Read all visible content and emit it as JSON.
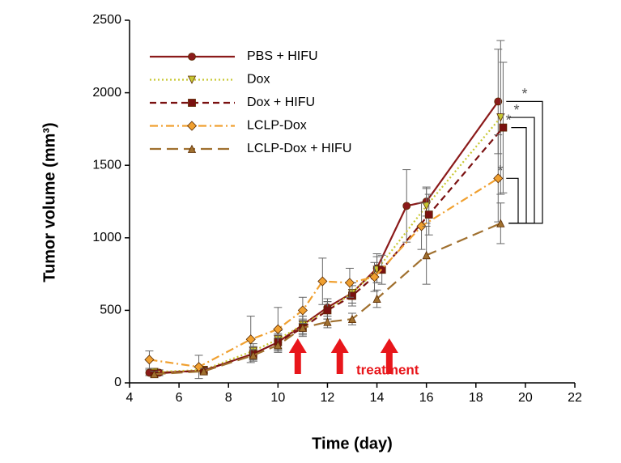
{
  "chart_data": {
    "type": "line",
    "x_label": "Time (day)",
    "y_label": "Tumor volume (mm³)",
    "xlim": [
      4,
      22
    ],
    "xticks": [
      4,
      6,
      8,
      10,
      12,
      14,
      16,
      18,
      20,
      22
    ],
    "ylim": [
      0,
      2500
    ],
    "yticks": [
      0,
      500,
      1000,
      1500,
      2000,
      2500
    ],
    "grid": false,
    "legend": "top-left",
    "series": [
      {
        "name": "PBS + HIFU",
        "color": "#8b1a1a",
        "marker": "circle",
        "dash": "solid",
        "x": [
          4.8,
          5.2,
          7,
          9,
          10,
          11,
          12,
          13,
          14,
          15.2,
          16,
          18.9
        ],
        "values": [
          70,
          70,
          85,
          200,
          280,
          400,
          520,
          620,
          790,
          1220,
          1250,
          1940
        ],
        "errors": [
          20,
          20,
          20,
          40,
          50,
          60,
          60,
          70,
          100,
          250,
          100,
          360
        ]
      },
      {
        "name": "Dox",
        "color": "#c8c832",
        "marker": "triangle-down",
        "dash": "dotted",
        "x": [
          5,
          7,
          9,
          10,
          11,
          12,
          13,
          14,
          16,
          19
        ],
        "values": [
          75,
          90,
          220,
          300,
          400,
          500,
          620,
          780,
          1220,
          1830
        ],
        "errors": [
          20,
          20,
          50,
          60,
          60,
          60,
          70,
          90,
          120,
          530
        ]
      },
      {
        "name": "Dox + HIFU",
        "color": "#7a1010",
        "marker": "square",
        "dash": "dashed",
        "x": [
          5,
          7,
          9,
          10,
          11,
          12,
          13,
          14.2,
          16.1,
          19.1
        ],
        "values": [
          65,
          85,
          200,
          280,
          380,
          500,
          600,
          780,
          1160,
          1760
        ],
        "errors": [
          20,
          20,
          50,
          60,
          60,
          60,
          70,
          100,
          140,
          450
        ]
      },
      {
        "name": "LCLP-Dox",
        "color": "#f0a030",
        "marker": "diamond",
        "dash": "dashdot",
        "x": [
          4.8,
          6.8,
          8.9,
          10,
          11,
          11.8,
          12.9,
          13.9,
          15.8,
          18.9
        ],
        "values": [
          160,
          110,
          300,
          370,
          500,
          700,
          690,
          730,
          1080,
          1410
        ],
        "errors": [
          60,
          80,
          160,
          150,
          90,
          160,
          100,
          100,
          160,
          300
        ]
      },
      {
        "name": "LCLP-Dox + HIFU",
        "color": "#a0702f",
        "marker": "triangle-up",
        "dash": "longdash",
        "x": [
          5,
          7,
          9,
          10,
          11,
          12,
          13,
          14,
          16,
          19
        ],
        "values": [
          60,
          80,
          190,
          260,
          380,
          420,
          440,
          580,
          880,
          1100
        ],
        "errors": [
          20,
          20,
          40,
          50,
          50,
          40,
          40,
          60,
          200,
          140
        ]
      }
    ],
    "significance": [
      "*",
      "*",
      "*",
      "*"
    ],
    "treatment_label": "treatment",
    "treatment_days": [
      10.8,
      12.5,
      14.5
    ],
    "treatment_color": "#e8161b"
  }
}
